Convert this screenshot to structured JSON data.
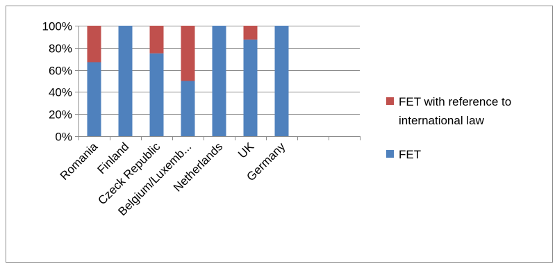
{
  "chart_data": {
    "type": "bar",
    "stacked": true,
    "normalized_percent": true,
    "categories": [
      "Romania",
      "Finland",
      "Czeck Republic",
      "Belgium/Luxemb...",
      "Netherlands",
      "UK",
      "Germany",
      "",
      ""
    ],
    "series": [
      {
        "name": "FET",
        "values": [
          0.67,
          1.0,
          0.75,
          0.5,
          1.0,
          0.875,
          1.0,
          0,
          0
        ],
        "color": "#4f81bd"
      },
      {
        "name": "FET with reference to international law",
        "values": [
          0.33,
          0.0,
          0.25,
          0.5,
          0.0,
          0.125,
          0.0,
          0,
          0
        ],
        "color": "#c0504d"
      }
    ],
    "y_ticks": [
      "0%",
      "20%",
      "40%",
      "60%",
      "80%",
      "100%"
    ],
    "ylim": [
      0,
      1
    ],
    "grid": true,
    "legend_position": "right",
    "legend": [
      {
        "label_lines": [
          "FET with reference to",
          "international law"
        ],
        "color": "#c0504d"
      },
      {
        "label_lines": [
          "FET"
        ],
        "color": "#4f81bd"
      }
    ]
  }
}
